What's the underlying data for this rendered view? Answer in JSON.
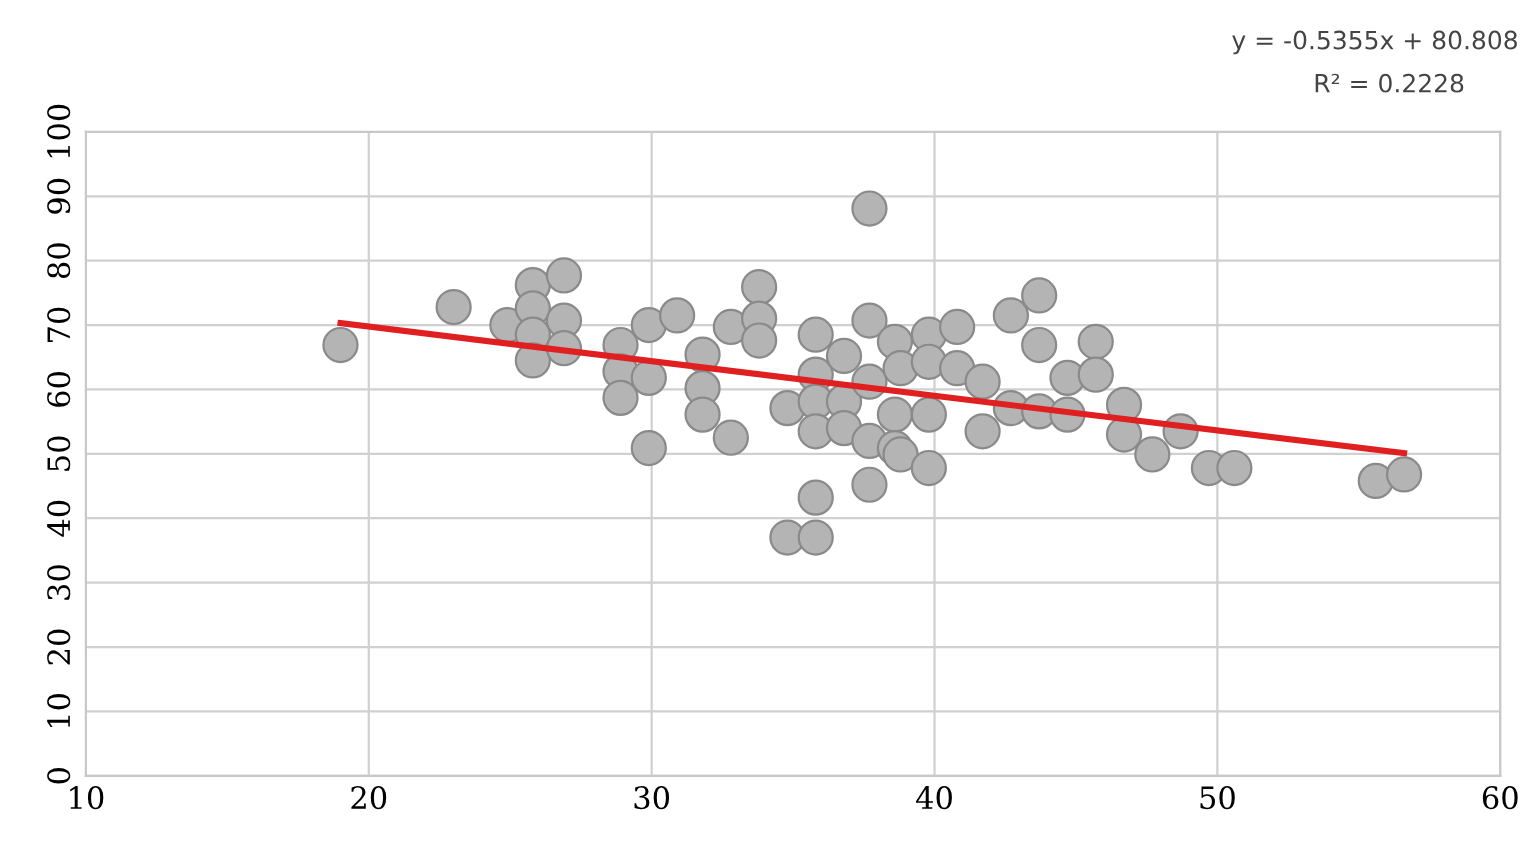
{
  "chart_data": {
    "type": "scatter",
    "xlim": [
      10,
      60
    ],
    "xticks": [
      10,
      20,
      30,
      40,
      50,
      60
    ],
    "ylim": [
      0,
      100
    ],
    "yticks": [
      0,
      10,
      20,
      30,
      40,
      50,
      60,
      70,
      80,
      90,
      100
    ],
    "grid": true,
    "annotations": [
      "y = -0.5355x + 80.808",
      "R² = 0.2228"
    ],
    "series": [
      {
        "color": "#b4b4b4",
        "marker": "circle",
        "x": [
          19.0,
          23.0,
          24.9,
          25.8,
          25.8,
          25.8,
          25.8,
          26.9,
          26.9,
          26.9,
          28.9,
          28.9,
          28.9,
          29.9,
          29.9,
          29.9,
          30.9,
          31.8,
          31.8,
          31.8,
          32.8,
          32.8,
          33.8,
          33.8,
          33.8,
          34.8,
          34.8,
          35.8,
          35.8,
          35.8,
          35.8,
          35.8,
          35.8,
          36.8,
          36.8,
          36.8,
          37.7,
          37.7,
          37.7,
          37.7,
          37.7,
          38.6,
          38.6,
          38.6,
          38.8,
          38.8,
          39.8,
          39.8,
          39.8,
          39.8,
          40.8,
          40.8,
          41.7,
          41.7,
          42.7,
          42.7,
          43.7,
          43.7,
          43.7,
          44.7,
          44.7,
          45.7,
          45.7,
          46.7,
          46.7,
          47.7,
          48.7,
          49.7,
          50.6,
          55.6,
          56.6
        ],
        "values": [
          66.9,
          72.8,
          70.0,
          76.2,
          72.6,
          68.5,
          64.5,
          77.7,
          70.7,
          66.4,
          66.9,
          62.8,
          58.7,
          70.0,
          61.8,
          50.9,
          71.5,
          65.4,
          60.2,
          56.1,
          69.7,
          52.5,
          75.9,
          71.0,
          67.6,
          57.1,
          37.0,
          68.5,
          62.3,
          58.1,
          53.5,
          43.2,
          37.0,
          65.2,
          58.1,
          54.0,
          88.1,
          70.7,
          61.2,
          52.0,
          45.2,
          67.4,
          56.1,
          50.9,
          63.3,
          49.9,
          68.5,
          64.3,
          56.1,
          47.8,
          69.7,
          63.3,
          61.2,
          53.5,
          71.5,
          57.1,
          74.6,
          66.9,
          56.6,
          61.8,
          56.1,
          67.4,
          62.3,
          57.6,
          53.0,
          49.9,
          53.5,
          47.8,
          47.8,
          45.8,
          46.8
        ]
      },
      {
        "type": "line",
        "color": "#e02020",
        "x": [
          19.0,
          56.6
        ],
        "values": [
          70.3,
          50.1
        ]
      }
    ]
  }
}
